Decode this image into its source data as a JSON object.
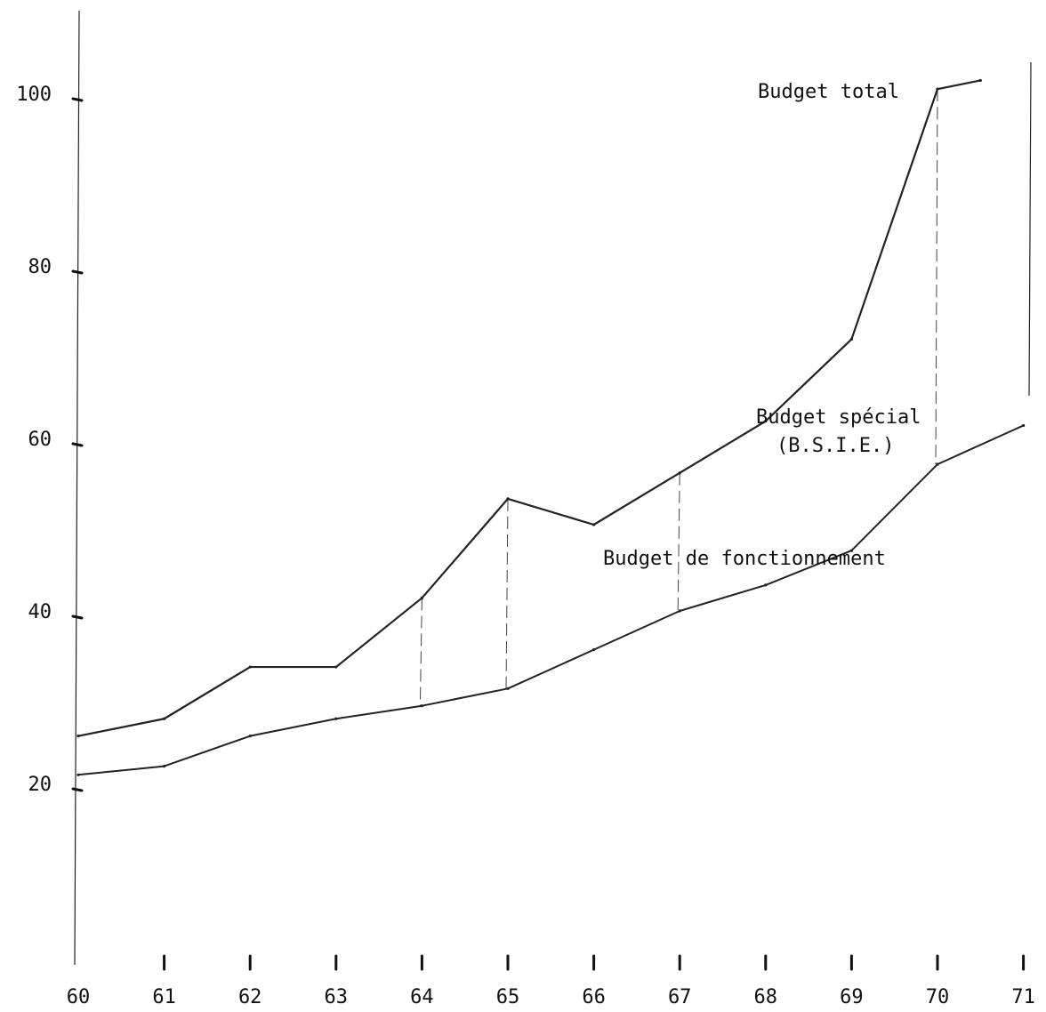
{
  "chart_data": {
    "type": "line",
    "title": "",
    "xlabel": "",
    "ylabel": "",
    "x": [
      60,
      61,
      62,
      63,
      64,
      65,
      66,
      67,
      68,
      69,
      70,
      71
    ],
    "x_tick_labels": [
      "60",
      "61",
      "62",
      "63",
      "64",
      "65",
      "66",
      "67",
      "68",
      "69",
      "70",
      "71"
    ],
    "y_ticks": [
      20,
      40,
      60,
      80,
      100
    ],
    "y_tick_labels": [
      "20",
      "40",
      "60",
      "80",
      "100"
    ],
    "xlim": [
      60,
      71
    ],
    "ylim": [
      0,
      110
    ],
    "grid": false,
    "series": [
      {
        "name": "Budget total",
        "x": [
          60,
          61,
          62,
          63,
          64,
          65,
          66,
          67,
          68,
          69,
          70,
          70.5
        ],
        "values": [
          25.5,
          27.5,
          33.5,
          33.5,
          41.5,
          53,
          50,
          56,
          62,
          71.5,
          100.5,
          101.5
        ]
      },
      {
        "name": "Budget spécial",
        "name_line2": "(B.S.I.E.)",
        "x": [
          60,
          61,
          62,
          63,
          64,
          65,
          66,
          67,
          68,
          69,
          70,
          71
        ],
        "values": [
          21,
          22,
          25.5,
          27.5,
          29,
          31,
          35.5,
          40,
          43,
          47,
          57,
          61.5
        ]
      },
      {
        "name": "Budget de fonctionnement"
      }
    ]
  }
}
